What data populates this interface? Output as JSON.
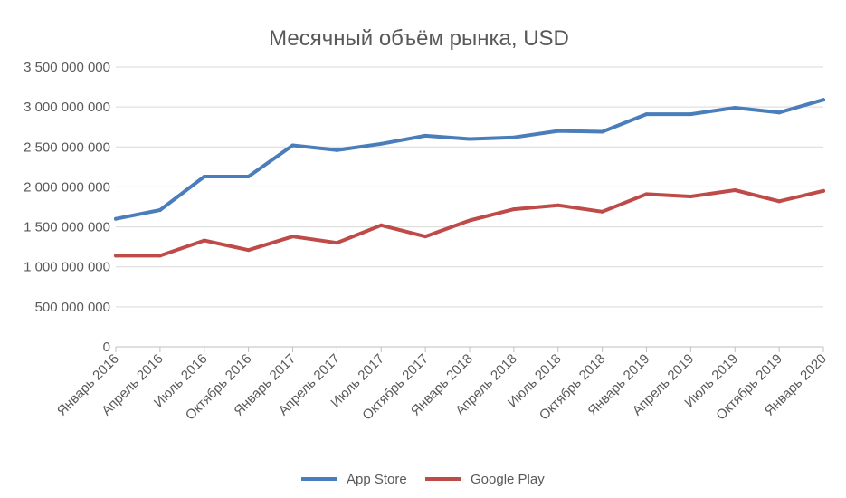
{
  "chart_data": {
    "type": "line",
    "title": "Месячный объём рынка, USD",
    "xlabel": "",
    "ylabel": "",
    "ylim": [
      0,
      3500000000
    ],
    "y_ticks": [
      0,
      500000000,
      1000000000,
      1500000000,
      2000000000,
      2500000000,
      3000000000,
      3500000000
    ],
    "y_tick_labels": [
      "0",
      "500 000 000",
      "1 000 000 000",
      "1 500 000 000",
      "2 000 000 000",
      "2 500 000 000",
      "3 000 000 000",
      "3 500 000 000"
    ],
    "grid": true,
    "legend_position": "bottom",
    "categories": [
      "Январь 2016",
      "Апрель 2016",
      "Июль 2016",
      "Октябрь 2016",
      "Январь 2017",
      "Апрель 2017",
      "Июль 2017",
      "Октябрь 2017",
      "Январь 2018",
      "Апрель 2018",
      "Июль 2018",
      "Октябрь 2018",
      "Январь 2019",
      "Апрель 2019",
      "Июль 2019",
      "Октябрь 2019",
      "Январь 2020"
    ],
    "series": [
      {
        "name": "App Store",
        "color": "#4a7ebb",
        "values": [
          1600000000,
          1710000000,
          2130000000,
          2130000000,
          2520000000,
          2460000000,
          2540000000,
          2640000000,
          2600000000,
          2620000000,
          2700000000,
          2690000000,
          2910000000,
          2910000000,
          2990000000,
          2930000000,
          3090000000
        ]
      },
      {
        "name": "Google Play",
        "color": "#be4b48",
        "values": [
          1140000000,
          1140000000,
          1330000000,
          1210000000,
          1380000000,
          1300000000,
          1520000000,
          1380000000,
          1580000000,
          1720000000,
          1770000000,
          1690000000,
          1910000000,
          1880000000,
          1960000000,
          1820000000,
          1950000000
        ]
      }
    ]
  }
}
